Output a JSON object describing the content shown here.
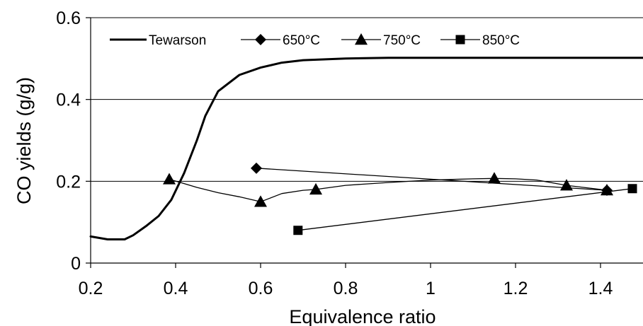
{
  "chart_data": {
    "type": "line",
    "title": "",
    "xlabel": "Equivalence ratio",
    "ylabel": "CO yields (g/g)",
    "xlim": [
      0.2,
      1.5
    ],
    "ylim": [
      0,
      0.6
    ],
    "x_ticks": [
      0.2,
      0.4,
      0.6,
      0.8,
      1,
      1.2,
      1.4
    ],
    "x_tick_labels": [
      "0.2",
      "0.4",
      "0.6",
      "0.8",
      "1",
      "1.2",
      "1.4"
    ],
    "y_ticks": [
      0,
      0.2,
      0.4,
      0.6
    ],
    "y_tick_labels": [
      "0",
      "0.2",
      "0.4",
      "0.6"
    ],
    "grid": "horizontal",
    "legend_position": "top",
    "series": [
      {
        "name": "Tewarson",
        "marker": "none",
        "line_width": "thick",
        "x": [
          0.2,
          0.24,
          0.28,
          0.3,
          0.33,
          0.36,
          0.39,
          0.42,
          0.45,
          0.47,
          0.5,
          0.55,
          0.6,
          0.65,
          0.7,
          0.8,
          0.9,
          1.0,
          1.2,
          1.4,
          1.5
        ],
        "y": [
          0.065,
          0.058,
          0.058,
          0.068,
          0.09,
          0.115,
          0.155,
          0.22,
          0.3,
          0.36,
          0.42,
          0.46,
          0.478,
          0.49,
          0.496,
          0.5,
          0.502,
          0.502,
          0.502,
          0.502,
          0.502
        ]
      },
      {
        "name": "650°C",
        "marker": "diamond",
        "x": [
          0.59,
          1.415
        ],
        "y": [
          0.232,
          0.178
        ]
      },
      {
        "name": "750°C",
        "marker": "triangle",
        "x": [
          0.385,
          0.6,
          0.73,
          1.15,
          1.32,
          1.415
        ],
        "y": [
          0.205,
          0.15,
          0.18,
          0.207,
          0.19,
          0.178
        ],
        "curve_x": [
          0.385,
          0.45,
          0.5,
          0.55,
          0.6,
          0.65,
          0.7,
          0.73,
          0.8,
          0.9,
          1.0,
          1.1,
          1.15,
          1.2,
          1.25,
          1.32,
          1.4,
          1.415
        ],
        "curve_y": [
          0.205,
          0.185,
          0.172,
          0.162,
          0.15,
          0.17,
          0.178,
          0.18,
          0.19,
          0.197,
          0.203,
          0.206,
          0.207,
          0.206,
          0.203,
          0.19,
          0.18,
          0.178
        ]
      },
      {
        "name": "850°C",
        "marker": "square",
        "x": [
          0.688,
          1.475
        ],
        "y": [
          0.08,
          0.182
        ]
      }
    ]
  }
}
